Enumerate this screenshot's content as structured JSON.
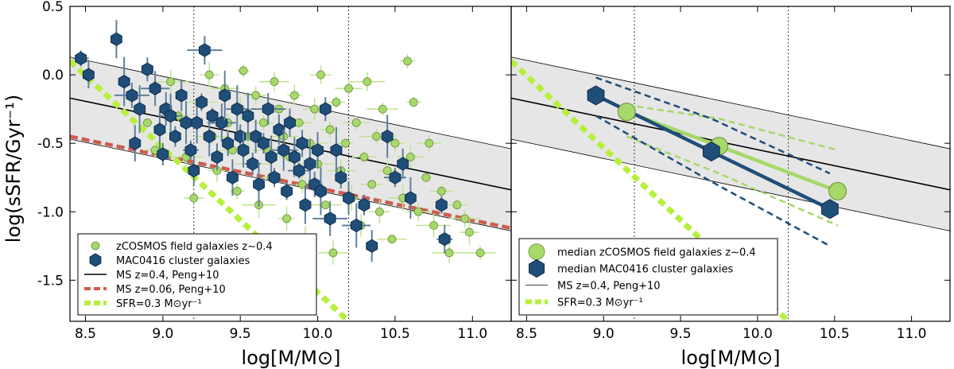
{
  "figure": {
    "ylabel": "log(sSFR/Gyr⁻¹)",
    "xlabel": "log[M/M⊙]"
  },
  "chart_data": [
    {
      "type": "scatter",
      "panel": "left",
      "xlim": [
        8.4,
        11.25
      ],
      "ylim": [
        -1.8,
        0.5
      ],
      "xticks": [
        "8.5",
        "9.0",
        "9.5",
        "10.0",
        "10.5",
        "11.0"
      ],
      "yticks": [
        "0.5",
        "0.0",
        "-0.5",
        "-1.0",
        "-1.5"
      ],
      "xlabel": "log[M/M⊙]",
      "ylabel": "log(sSFR/Gyr⁻¹)",
      "vlines": [
        9.2,
        10.2
      ],
      "ms_band": {
        "x": [
          8.4,
          11.25
        ],
        "center": [
          -0.17,
          -0.84
        ],
        "upper": [
          0.13,
          -0.54
        ],
        "lower": [
          -0.47,
          -1.14
        ]
      },
      "ms_z006": {
        "x": [
          8.4,
          11.25
        ],
        "y": [
          -0.45,
          -1.12
        ]
      },
      "sfr_limit": {
        "x": [
          8.4,
          10.2
        ],
        "y": [
          0.1,
          -1.8
        ]
      },
      "legend": [
        {
          "label": "zCOSMOS field galaxies z∼0.4",
          "style": "green-circle"
        },
        {
          "label": "MAC0416 cluster galaxies",
          "style": "blue-hexagon"
        },
        {
          "label": "MS z=0.4, Peng+10",
          "style": "black-line"
        },
        {
          "label": "MS z=0.06, Peng+10",
          "style": "red-dash"
        },
        {
          "label": "SFR=0.3 M⊙yr⁻¹",
          "style": "green-dash"
        }
      ],
      "series": [
        {
          "name": "zCOSMOS field galaxies z∼0.4",
          "color": "#a6d86a",
          "points": [
            [
              8.9,
              -0.35
            ],
            [
              8.95,
              -0.55
            ],
            [
              9.05,
              -0.05
            ],
            [
              9.1,
              -0.3
            ],
            [
              9.15,
              -0.6
            ],
            [
              9.2,
              -0.9
            ],
            [
              9.25,
              -0.2
            ],
            [
              9.3,
              0.0
            ],
            [
              9.32,
              -0.45
            ],
            [
              9.35,
              -0.7
            ],
            [
              9.4,
              -0.1
            ],
            [
              9.42,
              -0.35
            ],
            [
              9.45,
              -0.55
            ],
            [
              9.48,
              -0.85
            ],
            [
              9.5,
              -0.25
            ],
            [
              9.52,
              0.03
            ],
            [
              9.55,
              -0.45
            ],
            [
              9.58,
              -0.65
            ],
            [
              9.6,
              -0.15
            ],
            [
              9.62,
              -0.95
            ],
            [
              9.65,
              -0.35
            ],
            [
              9.68,
              -0.55
            ],
            [
              9.7,
              -0.75
            ],
            [
              9.72,
              -0.05
            ],
            [
              9.75,
              -0.25
            ],
            [
              9.78,
              -0.45
            ],
            [
              9.8,
              -1.05
            ],
            [
              9.82,
              -0.6
            ],
            [
              9.85,
              -0.15
            ],
            [
              9.88,
              -0.35
            ],
            [
              9.9,
              -0.8
            ],
            [
              9.92,
              -1.2
            ],
            [
              9.95,
              -0.5
            ],
            [
              9.98,
              -0.25
            ],
            [
              10.0,
              -0.65
            ],
            [
              10.02,
              0.0
            ],
            [
              10.05,
              -0.95
            ],
            [
              10.08,
              -0.4
            ],
            [
              10.1,
              -1.3
            ],
            [
              10.12,
              -0.2
            ],
            [
              10.15,
              -0.7
            ],
            [
              10.18,
              -0.5
            ],
            [
              10.2,
              -0.1
            ],
            [
              10.22,
              -0.9
            ],
            [
              10.25,
              -0.35
            ],
            [
              10.28,
              -1.1
            ],
            [
              10.3,
              -0.6
            ],
            [
              10.32,
              -0.05
            ],
            [
              10.35,
              -0.8
            ],
            [
              10.38,
              -0.45
            ],
            [
              10.4,
              -1.0
            ],
            [
              10.42,
              -0.25
            ],
            [
              10.45,
              -0.7
            ],
            [
              10.48,
              -1.2
            ],
            [
              10.5,
              -0.5
            ],
            [
              10.55,
              -0.9
            ],
            [
              10.58,
              0.1
            ],
            [
              10.6,
              -0.6
            ],
            [
              10.62,
              -0.2
            ],
            [
              10.65,
              -1.0
            ],
            [
              10.7,
              -0.75
            ],
            [
              10.72,
              -0.5
            ],
            [
              10.75,
              -1.1
            ],
            [
              10.8,
              -0.85
            ],
            [
              10.85,
              -1.3
            ],
            [
              10.9,
              -0.95
            ],
            [
              10.95,
              -1.05
            ],
            [
              10.98,
              -1.15
            ],
            [
              11.05,
              -1.3
            ]
          ]
        },
        {
          "name": "MAC0416 cluster galaxies",
          "color": "#1f4e79",
          "points": [
            [
              8.47,
              0.12
            ],
            [
              8.52,
              0.0
            ],
            [
              8.7,
              0.26
            ],
            [
              8.75,
              -0.05
            ],
            [
              8.8,
              -0.15
            ],
            [
              8.82,
              -0.5
            ],
            [
              8.85,
              -0.25
            ],
            [
              8.9,
              0.04
            ],
            [
              8.95,
              -0.1
            ],
            [
              8.98,
              -0.4
            ],
            [
              9.0,
              -0.58
            ],
            [
              9.02,
              -0.25
            ],
            [
              9.05,
              -0.3
            ],
            [
              9.08,
              -0.45
            ],
            [
              9.12,
              -0.15
            ],
            [
              9.15,
              -0.35
            ],
            [
              9.18,
              -0.55
            ],
            [
              9.2,
              -0.7
            ],
            [
              9.22,
              -0.35
            ],
            [
              9.25,
              -0.2
            ],
            [
              9.27,
              0.18
            ],
            [
              9.3,
              -0.45
            ],
            [
              9.32,
              -0.3
            ],
            [
              9.35,
              -0.6
            ],
            [
              9.38,
              -0.35
            ],
            [
              9.4,
              -0.15
            ],
            [
              9.42,
              -0.5
            ],
            [
              9.45,
              -0.75
            ],
            [
              9.48,
              -0.25
            ],
            [
              9.5,
              -0.45
            ],
            [
              9.52,
              -0.55
            ],
            [
              9.55,
              -0.3
            ],
            [
              9.58,
              -0.65
            ],
            [
              9.6,
              -0.45
            ],
            [
              9.62,
              -0.8
            ],
            [
              9.65,
              -0.5
            ],
            [
              9.68,
              -0.25
            ],
            [
              9.7,
              -0.6
            ],
            [
              9.72,
              -0.75
            ],
            [
              9.75,
              -0.4
            ],
            [
              9.78,
              -0.55
            ],
            [
              9.8,
              -0.85
            ],
            [
              9.82,
              -0.35
            ],
            [
              9.85,
              -0.6
            ],
            [
              9.88,
              -0.7
            ],
            [
              9.9,
              -0.5
            ],
            [
              9.92,
              -0.95
            ],
            [
              9.95,
              -0.65
            ],
            [
              9.98,
              -0.8
            ],
            [
              10.0,
              -0.55
            ],
            [
              10.02,
              -0.85
            ],
            [
              10.05,
              -0.25
            ],
            [
              10.08,
              -1.05
            ],
            [
              10.12,
              -0.55
            ],
            [
              10.15,
              -0.75
            ],
            [
              10.2,
              -0.9
            ],
            [
              10.25,
              -1.1
            ],
            [
              10.3,
              -0.95
            ],
            [
              10.35,
              -1.25
            ],
            [
              10.45,
              -0.45
            ],
            [
              10.5,
              -0.75
            ],
            [
              10.55,
              -0.65
            ],
            [
              10.6,
              -0.9
            ],
            [
              10.8,
              -0.95
            ],
            [
              10.82,
              -1.2
            ]
          ]
        }
      ]
    },
    {
      "type": "line",
      "panel": "right",
      "xlim": [
        8.4,
        11.25
      ],
      "ylim": [
        -1.8,
        0.5
      ],
      "xticks": [
        "8.5",
        "9.0",
        "9.5",
        "10.0",
        "10.5",
        "11.0"
      ],
      "xlabel": "log[M/M⊙]",
      "vlines": [
        9.2,
        10.2
      ],
      "ms_band": {
        "x": [
          8.4,
          11.25
        ],
        "center": [
          -0.17,
          -0.84
        ],
        "upper": [
          0.13,
          -0.54
        ],
        "lower": [
          -0.47,
          -1.14
        ]
      },
      "sfr_limit": {
        "x": [
          8.4,
          10.2
        ],
        "y": [
          0.1,
          -1.8
        ]
      },
      "legend": [
        {
          "label": "median zCOSMOS field galaxies z∼0.4",
          "style": "green-circle"
        },
        {
          "label": "median MAC0416 cluster galaxies",
          "style": "blue-hexagon"
        },
        {
          "label": "MS z=0.4, Peng+10",
          "style": "black-line"
        },
        {
          "label": "SFR=0.3 M⊙yr⁻¹",
          "style": "green-dash"
        }
      ],
      "series": [
        {
          "name": "median zCOSMOS field galaxies z∼0.4",
          "color": "#a6d86a",
          "x": [
            9.15,
            9.75,
            10.52
          ],
          "y": [
            -0.27,
            -0.52,
            -0.85
          ],
          "upper": [
            -0.22,
            -0.32,
            -0.55
          ],
          "lower": [
            -0.45,
            -0.72,
            -1.1
          ]
        },
        {
          "name": "median MAC0416 cluster galaxies",
          "color": "#1f4e79",
          "x": [
            8.95,
            9.7,
            10.47
          ],
          "y": [
            -0.15,
            -0.56,
            -0.98
          ],
          "upper": [
            -0.02,
            -0.32,
            -0.72
          ],
          "lower": [
            -0.3,
            -0.78,
            -1.25
          ]
        }
      ]
    }
  ]
}
